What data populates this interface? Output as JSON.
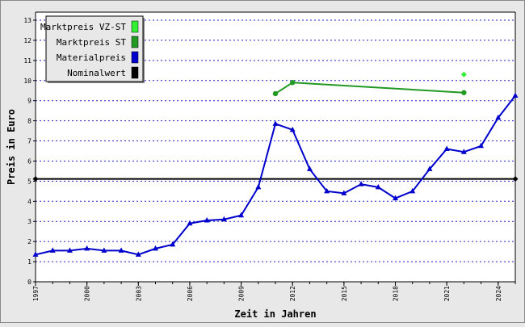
{
  "chart_data": {
    "type": "line",
    "xlabel": "Zeit in Jahren",
    "ylabel": "Preis in Euro",
    "xlim": [
      1997,
      2025
    ],
    "ylim": [
      0,
      13.5
    ],
    "x_ticks": [
      "1997",
      "2000",
      "2003",
      "2006",
      "2009",
      "2012",
      "2015",
      "2018",
      "2021",
      "2024"
    ],
    "y_ticks": [
      "0",
      "1",
      "2",
      "3",
      "4",
      "5",
      "6",
      "7",
      "8",
      "9",
      "10",
      "11",
      "12",
      "13"
    ],
    "grid": "horizontal dotted",
    "legend_position": "top-left",
    "legend": [
      {
        "label": "Marktpreis VZ-ST",
        "color": "#33ee33"
      },
      {
        "label": "Marktpreis ST",
        "color": "#229922"
      },
      {
        "label": "Materialpreis",
        "color": "#0000cc"
      },
      {
        "label": "Nominalwert",
        "color": "#000000"
      }
    ],
    "series": [
      {
        "name": "Marktpreis VZ-ST",
        "color": "#33ee33",
        "marker": "diamond",
        "line": false,
        "points": [
          [
            2022,
            10.3
          ]
        ]
      },
      {
        "name": "Marktpreis ST",
        "color": "#229922",
        "marker": "circle",
        "line": true,
        "points": [
          [
            2011,
            9.35
          ],
          [
            2012,
            9.9
          ],
          [
            2022,
            9.4
          ]
        ]
      },
      {
        "name": "Materialpreis",
        "color": "#0000cc",
        "marker": "triangle",
        "line": true,
        "points": [
          [
            1997,
            1.35
          ],
          [
            1998,
            1.55
          ],
          [
            1999,
            1.55
          ],
          [
            2000,
            1.65
          ],
          [
            2001,
            1.55
          ],
          [
            2002,
            1.55
          ],
          [
            2003,
            1.35
          ],
          [
            2004,
            1.65
          ],
          [
            2005,
            1.85
          ],
          [
            2006,
            2.9
          ],
          [
            2007,
            3.05
          ],
          [
            2008,
            3.1
          ],
          [
            2009,
            3.3
          ],
          [
            2010,
            4.7
          ],
          [
            2011,
            7.85
          ],
          [
            2012,
            7.55
          ],
          [
            2013,
            5.6
          ],
          [
            2014,
            4.5
          ],
          [
            2015,
            4.4
          ],
          [
            2016,
            4.85
          ],
          [
            2017,
            4.7
          ],
          [
            2018,
            4.15
          ],
          [
            2019,
            4.5
          ],
          [
            2020,
            5.6
          ],
          [
            2021,
            6.6
          ],
          [
            2022,
            6.45
          ],
          [
            2023,
            6.75
          ],
          [
            2024,
            8.15
          ],
          [
            2025,
            9.25
          ]
        ]
      },
      {
        "name": "Nominalwert",
        "color": "#000000",
        "marker": "diamond",
        "line": true,
        "points": [
          [
            1997,
            5.11
          ],
          [
            2025,
            5.11
          ]
        ]
      }
    ]
  }
}
